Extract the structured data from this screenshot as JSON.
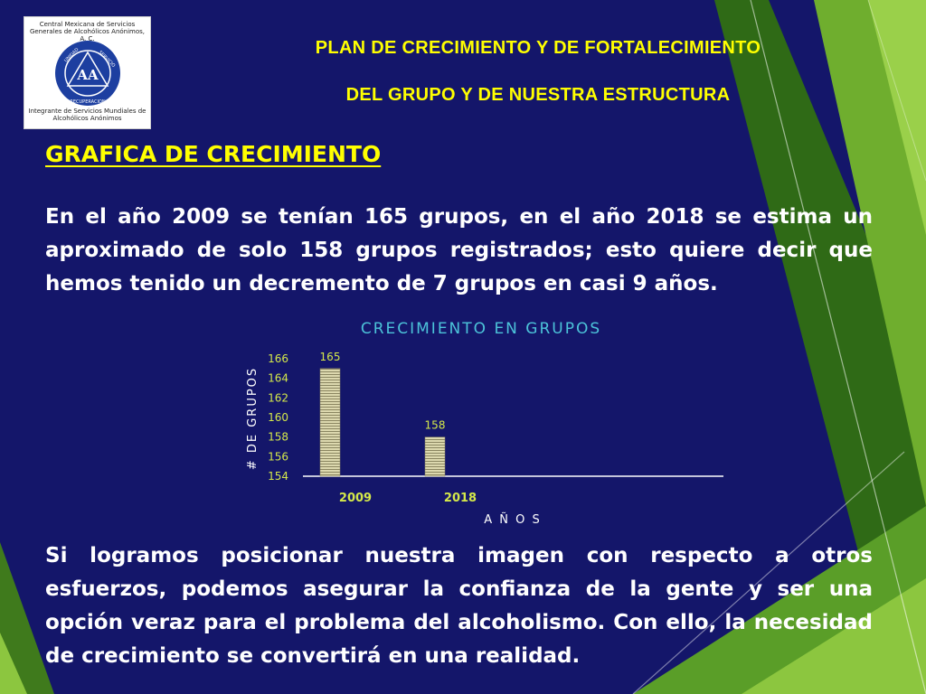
{
  "header": {
    "line1": "PLAN DE CRECIMIENTO Y DE FORTALECIMIENTO",
    "line2": "DEL GRUPO Y DE NUESTRA ESTRUCTURA"
  },
  "logo": {
    "org_name": "Central Mexicana de Servicios Generales de Alcohólicos Anónimos, A. C.",
    "emblem_text": "AA",
    "ring_words": [
      "UNIDAD",
      "SERVICIO",
      "RECUPERACION"
    ],
    "tagline": "Integrante de Servicios Mundiales de Alcohólicos Anónimos"
  },
  "section_title": "GRAFICA DE CRECIMIENTO",
  "paragraph1": "En el año 2009 se tenían 165 grupos, en el año 2018 se estima un aproximado de solo 158 grupos registrados; esto quiere decir que hemos tenido un decremento de 7 grupos en casi 9 años.",
  "paragraph2": "Si logramos posicionar nuestra imagen con respecto a otros esfuerzos, podemos asegurar la confianza de la gente y ser una opción veraz para el problema del alcoholismo. Con ello, la necesidad de crecimiento se convertirá en una realidad.",
  "colors": {
    "background": "#14166a",
    "header_text": "#ffff00",
    "title_text": "#ffff00",
    "body_text": "#ffffff",
    "chart_title": "#4cc3d9",
    "tick_text": "#d4e84a",
    "bar_fill": "#d8d4a8",
    "green_dark": "#3f7a1c",
    "green_light": "#8cc63f"
  },
  "chart_data": {
    "type": "bar",
    "title": "CRECIMIENTO EN GRUPOS",
    "xlabel": "A Ñ O S",
    "ylabel": "# DE GRUPOS",
    "categories": [
      "2009",
      "2018"
    ],
    "values": [
      165,
      158
    ],
    "data_labels": [
      "165",
      "158"
    ],
    "ylim": [
      154,
      166
    ],
    "yticks": [
      154,
      156,
      158,
      160,
      162,
      164,
      166
    ],
    "grid": false,
    "legend": "none"
  }
}
